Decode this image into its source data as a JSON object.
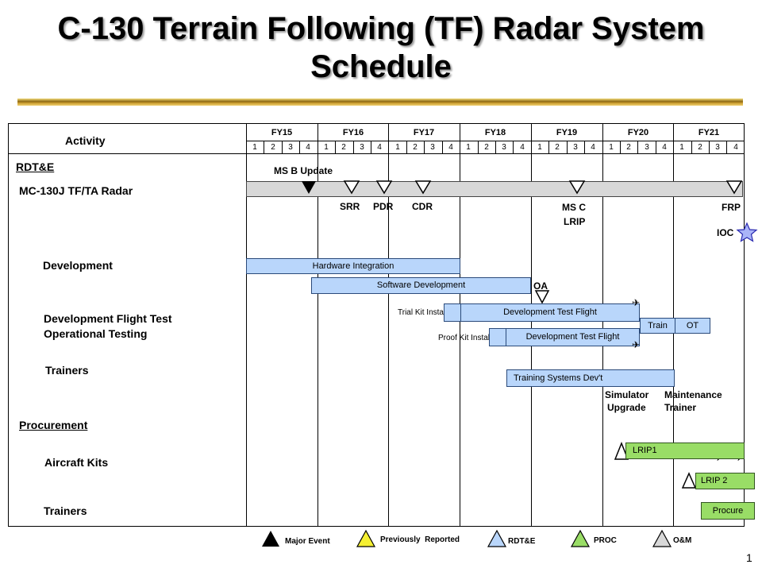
{
  "title": "C-130 Terrain Following (TF) Radar System Schedule",
  "header": {
    "activity": "Activity",
    "fiscal_years": [
      "FY15",
      "FY16",
      "FY17",
      "FY18",
      "FY19",
      "FY20",
      "FY21"
    ],
    "quarters": [
      "1",
      "2",
      "3",
      "4"
    ]
  },
  "rows": {
    "rdte": "RDT&E",
    "mc130j": "MC-130J TF/TA Radar",
    "development": "Development",
    "dev_flight_test": "Development Flight Test",
    "operational_testing": "Operational Testing",
    "trainers1": "Trainers",
    "procurement": "Procurement",
    "aircraft_kits": "Aircraft Kits",
    "trainers2": "Trainers"
  },
  "events": {
    "ms_b": "MS B Update",
    "srr": "SRR",
    "pdr": "PDR",
    "cdr": "CDR",
    "ms_c": "MS C",
    "lrip": "LRIP",
    "frp": "FRP",
    "ioc": "IOC",
    "oa": "OA",
    "simulator_1": "Simulator",
    "simulator_2": "Upgrade",
    "maintenance_1": "Maintenance",
    "maintenance_2": "Trainer"
  },
  "bars": {
    "hardware": "Hardware Integration",
    "software": "Software Development",
    "trial_kit": "Trial Kit Install",
    "dtf1": "Development Test Flight",
    "proof_kit": "Proof Kit Install",
    "dtf2": "Development Test Flight",
    "train": "Train",
    "ot": "OT",
    "training_sys": "Training Systems Dev't",
    "lrip1": "LRIP1",
    "lrip2": "LRIP 2",
    "procure": "Procure"
  },
  "legend": {
    "major": "Major Event",
    "previous": "Previously  Reported",
    "rdte": "RDT&E",
    "proc": "PROC",
    "om": "O&M"
  },
  "page_number": "1",
  "colors": {
    "rdte": "#b9d6fb",
    "proc": "#99dd66",
    "om": "#d8d8d8",
    "previously_reported": "#f5f032",
    "ioc_star": "#aab4f8"
  }
}
